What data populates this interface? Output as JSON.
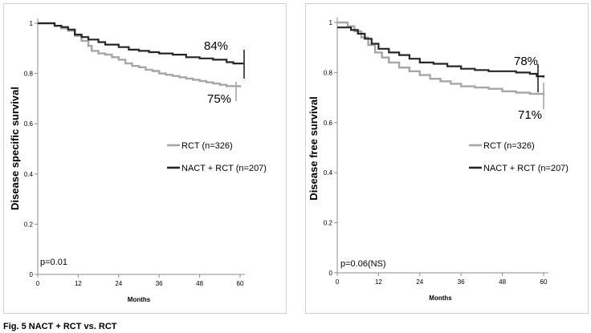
{
  "caption": "Fig. 5 NACT + RCT vs. RCT",
  "chart_data": [
    {
      "type": "line",
      "ylabel": "Disease specific survival",
      "xlabel": "Months",
      "xlim": [
        0,
        60
      ],
      "ylim": [
        0,
        1
      ],
      "xticks": [
        "0",
        "12",
        "24",
        "36",
        "48",
        "60"
      ],
      "yticks": [
        "0",
        "0.2",
        "0.4",
        "0.6",
        "0.8",
        "1"
      ],
      "annotations": {
        "pvalue": "p=0.01",
        "nact_label": "84%",
        "rct_label": "75%"
      },
      "series": [
        {
          "name": "RCT (n=326)",
          "color": "#a6a6a6",
          "x": [
            0,
            3,
            5,
            7,
            9,
            11,
            13,
            15,
            16,
            18,
            20,
            22,
            24,
            26,
            28,
            30,
            32,
            34,
            36,
            38,
            40,
            42,
            44,
            46,
            48,
            50,
            52,
            54,
            56,
            58,
            60
          ],
          "y": [
            1.0,
            1.0,
            0.99,
            0.98,
            0.97,
            0.95,
            0.93,
            0.91,
            0.89,
            0.88,
            0.875,
            0.865,
            0.855,
            0.84,
            0.83,
            0.825,
            0.815,
            0.81,
            0.8,
            0.795,
            0.79,
            0.785,
            0.78,
            0.775,
            0.77,
            0.765,
            0.76,
            0.755,
            0.75,
            0.75,
            0.745
          ]
        },
        {
          "name": "NACT + RCT (n=207)",
          "color": "#262626",
          "x": [
            0,
            3,
            5,
            7,
            9,
            11,
            13,
            15,
            18,
            20,
            24,
            27,
            30,
            33,
            36,
            40,
            44,
            48,
            52,
            56,
            58,
            61
          ],
          "y": [
            1.0,
            1.0,
            0.99,
            0.985,
            0.975,
            0.955,
            0.945,
            0.935,
            0.925,
            0.915,
            0.905,
            0.895,
            0.89,
            0.885,
            0.88,
            0.875,
            0.865,
            0.86,
            0.855,
            0.845,
            0.84,
            0.84
          ]
        }
      ]
    },
    {
      "type": "line",
      "ylabel": "Disease free survival",
      "xlabel": "Months",
      "xlim": [
        0,
        60
      ],
      "ylim": [
        0,
        1
      ],
      "xticks": [
        "0",
        "12",
        "24",
        "36",
        "48",
        "60"
      ],
      "yticks": [
        "0",
        "0.2",
        "0.4",
        "0.6",
        "0.8",
        "1"
      ],
      "annotations": {
        "pvalue": "p=0.06(NS)",
        "nact_label": "78%",
        "rct_label": "71%"
      },
      "series": [
        {
          "name": "RCT (n=326)",
          "color": "#a6a6a6",
          "x": [
            0,
            1,
            3,
            5,
            7,
            9,
            11,
            13,
            15,
            18,
            21,
            24,
            27,
            30,
            33,
            36,
            40,
            44,
            48,
            52,
            56,
            60
          ],
          "y": [
            1.0,
            1.0,
            0.985,
            0.965,
            0.94,
            0.91,
            0.88,
            0.86,
            0.84,
            0.82,
            0.805,
            0.79,
            0.775,
            0.765,
            0.755,
            0.745,
            0.74,
            0.735,
            0.725,
            0.72,
            0.715,
            0.71
          ]
        },
        {
          "name": "NACT + RCT (n=207)",
          "color": "#262626",
          "x": [
            0,
            2,
            4,
            6,
            8,
            10,
            12,
            15,
            18,
            21,
            24,
            28,
            32,
            36,
            40,
            44,
            48,
            52,
            56,
            58,
            60
          ],
          "y": [
            0.98,
            0.98,
            0.97,
            0.955,
            0.935,
            0.915,
            0.895,
            0.88,
            0.87,
            0.855,
            0.84,
            0.835,
            0.825,
            0.815,
            0.81,
            0.805,
            0.805,
            0.8,
            0.795,
            0.785,
            0.78
          ]
        }
      ]
    }
  ]
}
